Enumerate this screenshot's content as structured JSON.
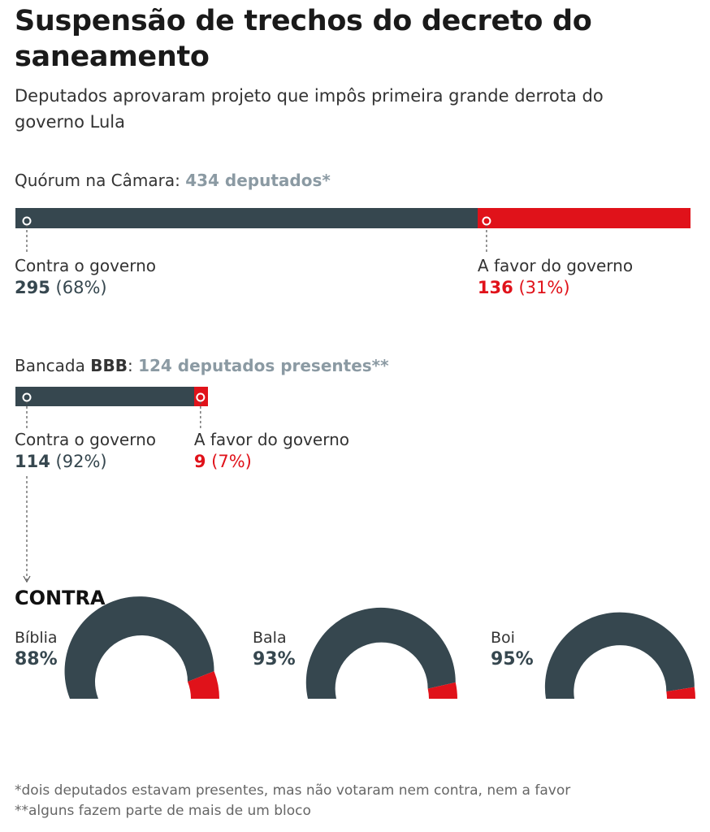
{
  "title": "Suspensão de trechos do decreto do saneamento",
  "subtitle": "Deputados aprovaram projeto que impôs primeira grande derrota do governo Lula",
  "camara": {
    "label": "Quórum na Câmara:",
    "total_text": "434 deputados*",
    "against_label": "Contra o governo",
    "against_num": "295",
    "against_pct": "(68%)",
    "favor_label": "A favor do governo",
    "favor_num": "136",
    "favor_pct": "(31%)"
  },
  "bbb": {
    "label": "Bancada",
    "label_bold": "BBB",
    "colon": ":",
    "total_text": "124 deputados presentes**",
    "against_label": "Contra o governo",
    "against_num": "114",
    "against_pct": "(92%)",
    "favor_label": "A favor do governo",
    "favor_num": "9",
    "favor_pct": "(7%)"
  },
  "contra": {
    "heading": "CONTRA",
    "gauges": [
      {
        "label": "Bíblia",
        "value_text": "88%"
      },
      {
        "label": "Bala",
        "value_text": "93%"
      },
      {
        "label": "Boi",
        "value_text": "95%"
      }
    ]
  },
  "footnotes": [
    "*dois deputados estavam presentes, mas não votaram nem contra, nem a favor",
    "**alguns fazem parte de mais de um bloco"
  ],
  "colors": {
    "against": "#36474f",
    "favor": "#e0121a",
    "muted": "#8b9aa3"
  },
  "chart_data": [
    {
      "type": "bar",
      "title": "Quórum na Câmara: 434 deputados*",
      "orientation": "horizontal-stacked",
      "total": 434,
      "series": [
        {
          "name": "Contra o governo",
          "value": 295,
          "percent": 68
        },
        {
          "name": "A favor do governo",
          "value": 136,
          "percent": 31
        }
      ]
    },
    {
      "type": "bar",
      "title": "Bancada BBB: 124 deputados presentes**",
      "orientation": "horizontal-stacked",
      "total": 124,
      "series": [
        {
          "name": "Contra o governo",
          "value": 114,
          "percent": 92
        },
        {
          "name": "A favor do governo",
          "value": 9,
          "percent": 7
        }
      ]
    },
    {
      "type": "pie",
      "subtype": "semicircle-gauge",
      "title": "CONTRA",
      "categories": [
        "Bíblia",
        "Bala",
        "Boi"
      ],
      "values": [
        88,
        93,
        95
      ],
      "unit": "%"
    }
  ]
}
